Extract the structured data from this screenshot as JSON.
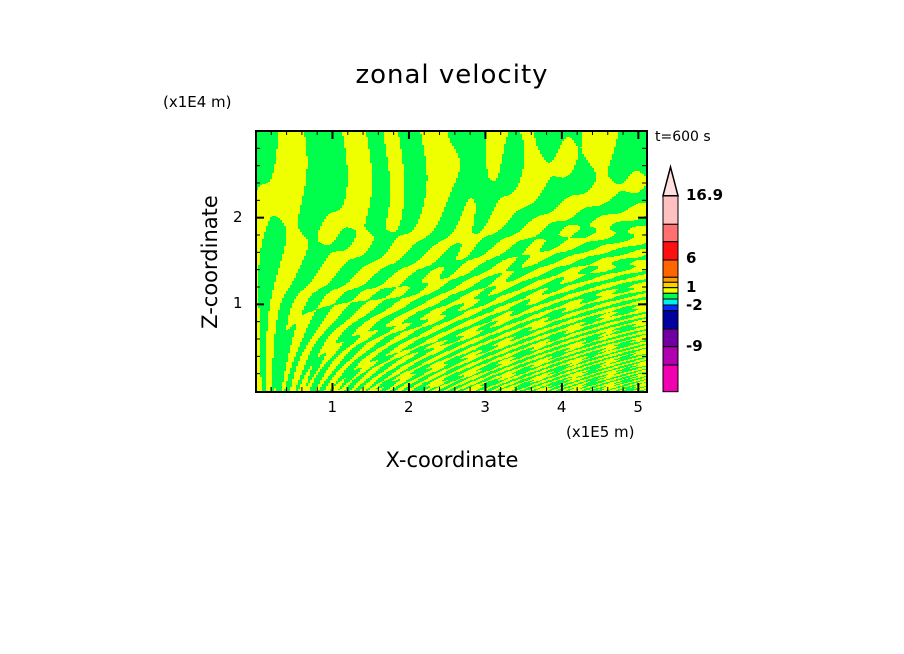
{
  "chart_data": {
    "type": "heatmap",
    "title": "zonal velocity",
    "xlabel": "X-coordinate",
    "ylabel": "Z-coordinate",
    "x_unit": "(x1E5 m)",
    "z_unit": "(x1E4 m)",
    "time_label": "t=600 s",
    "xlim": [
      0,
      5.1
    ],
    "ylim": [
      0,
      3.0
    ],
    "x_ticks": [
      "1",
      "2",
      "3",
      "4",
      "5"
    ],
    "x_tick_values": [
      1,
      2,
      3,
      4,
      5
    ],
    "y_ticks": [
      "1",
      "2"
    ],
    "y_tick_values": [
      1,
      2
    ],
    "field_colors": {
      "positive_small": "#f0ff00",
      "negative_small": "#00ff4c"
    },
    "colorbar": {
      "labels": [
        "16.9",
        "6",
        "1",
        "-2",
        "-9"
      ],
      "label_levels": [
        16.9,
        6,
        1,
        -2,
        -9
      ],
      "colors": [
        "#ffc0c0",
        "#ff7070",
        "#ff1010",
        "#ff6600",
        "#ffa000",
        "#ffd000",
        "#f0ff00",
        "#00ff4c",
        "#00f0f0",
        "#0030ff",
        "#0000a0",
        "#7000a0",
        "#b000b0",
        "#f000b0"
      ],
      "extend_top_color": "#ffe0e0"
    }
  }
}
